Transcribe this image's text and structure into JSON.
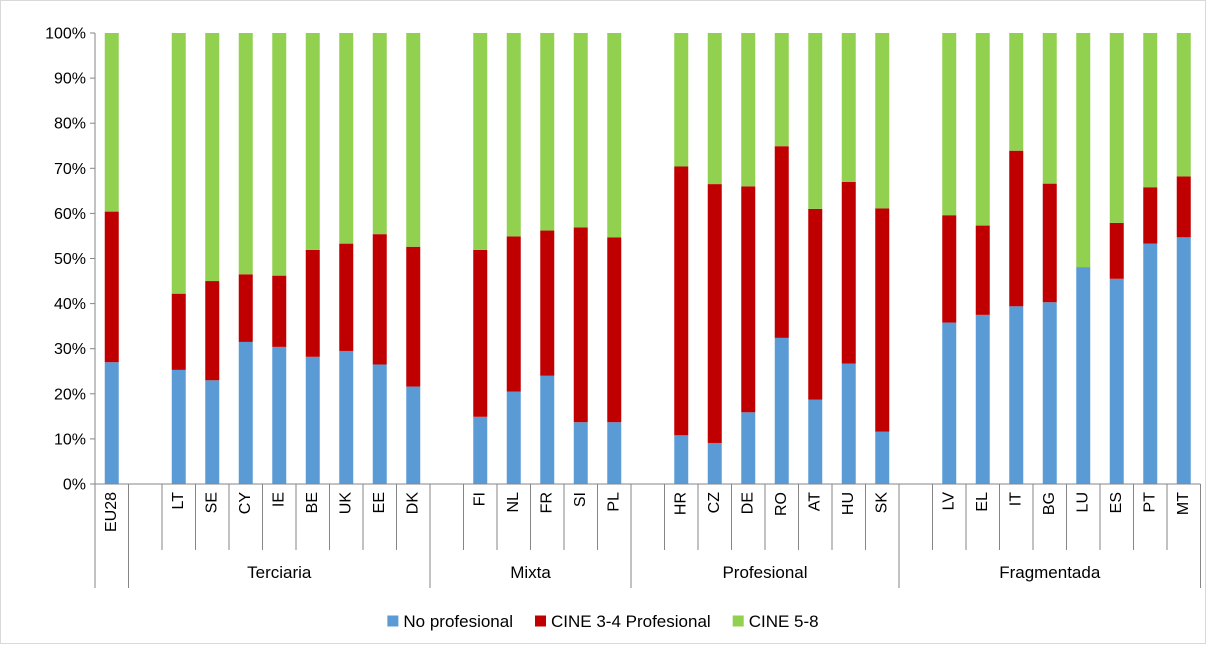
{
  "chart_data": {
    "type": "bar",
    "stacked": true,
    "normalized_percent": true,
    "categories": [
      "EU28",
      "",
      "LT",
      "SE",
      "CY",
      "IE",
      "BE",
      "UK",
      "EE",
      "DK",
      "",
      "FI",
      "NL",
      "FR",
      "SI",
      "PL",
      "",
      "HR",
      "CZ",
      "DE",
      "RO",
      "AT",
      "HU",
      "SK",
      "",
      "LV",
      "EL",
      "IT",
      "BG",
      "LU",
      "ES",
      "PT",
      "MT"
    ],
    "groups": [
      {
        "label": "Terciaria",
        "categories": [
          "",
          "LT",
          "SE",
          "CY",
          "IE",
          "BE",
          "UK",
          "EE",
          "DK"
        ]
      },
      {
        "label": "Mixta",
        "categories": [
          "",
          "FI",
          "NL",
          "FR",
          "SI",
          "PL"
        ]
      },
      {
        "label": "Profesional",
        "categories": [
          "",
          "HR",
          "CZ",
          "DE",
          "RO",
          "AT",
          "HU",
          "SK"
        ]
      },
      {
        "label": "Fragmentada",
        "categories": [
          "",
          "LV",
          "EL",
          "IT",
          "BG",
          "LU",
          "ES",
          "PT",
          "MT"
        ]
      }
    ],
    "series": [
      {
        "name": "No profesional",
        "color": "#5b9bd5",
        "values": [
          27,
          null,
          25.3,
          23,
          31.5,
          30.4,
          28.2,
          29.5,
          26.5,
          21.6,
          null,
          14.9,
          20.5,
          24,
          13.7,
          13.7,
          null,
          10.8,
          9.1,
          15.9,
          32.4,
          18.7,
          26.7,
          11.6,
          null,
          35.8,
          37.5,
          39.4,
          40.3,
          48.1,
          45.5,
          53.3,
          54.7
        ]
      },
      {
        "name": "CINE 3-4 Profesional",
        "color": "#c00000",
        "values": [
          33.4,
          null,
          16.9,
          22,
          15,
          15.8,
          23.7,
          23.8,
          28.9,
          31,
          null,
          37,
          34.4,
          32.2,
          43.2,
          41,
          null,
          59.6,
          57.4,
          50.1,
          42.5,
          42.3,
          40.3,
          49.5,
          null,
          23.8,
          19.8,
          34.5,
          26.3,
          0,
          12.4,
          12.5,
          13.5
        ]
      },
      {
        "name": "CINE 5-8",
        "color": "#92d050",
        "values": [
          39.6,
          null,
          57.8,
          55,
          53.5,
          53.8,
          48.1,
          46.7,
          44.6,
          47.4,
          null,
          48.1,
          45.1,
          43.8,
          43.1,
          45.3,
          null,
          29.6,
          33.5,
          34,
          25.1,
          39,
          33,
          38.9,
          null,
          40.4,
          42.7,
          26.1,
          33.4,
          51.9,
          42.1,
          34.2,
          31.8
        ]
      }
    ],
    "ylim": [
      0,
      100
    ],
    "yticks": [
      "0%",
      "10%",
      "20%",
      "30%",
      "40%",
      "50%",
      "60%",
      "70%",
      "80%",
      "90%",
      "100%"
    ],
    "grid": false,
    "legend_position": "bottom"
  }
}
